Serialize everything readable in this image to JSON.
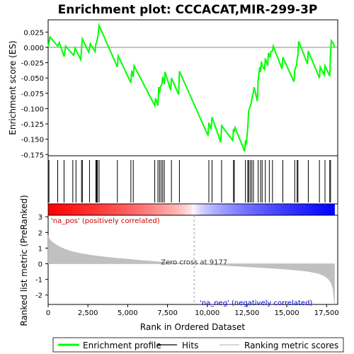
{
  "chart_data": {
    "type": "line",
    "title": "Enrichment plot: CCCACAT,MIR-299-3P",
    "es_panel": {
      "ylabel": "Enrichment score (ES)",
      "yticks": [
        "0.025",
        "0.000",
        "-0.025",
        "-0.050",
        "-0.075",
        "-0.100",
        "-0.125",
        "-0.150",
        "-0.175"
      ],
      "ylim": [
        -0.177,
        0.045
      ],
      "series_name": "Enrichment profile",
      "color": "#00ff00",
      "x": [
        0,
        120,
        600,
        700,
        1000,
        1100,
        1500,
        1600,
        1700,
        1750,
        2050,
        2100,
        2150,
        2550,
        2650,
        2950,
        3000,
        3050,
        3150,
        3200,
        4350,
        4400,
        5200,
        5250,
        5350,
        5400,
        6700,
        6750,
        6900,
        6950,
        7000,
        7050,
        7150,
        7200,
        7300,
        7350,
        7700,
        7750,
        8200,
        8250,
        10050,
        10100,
        10250,
        10300,
        10850,
        10900,
        11600,
        11650,
        11700,
        11750,
        12350,
        12400,
        12450,
        12500,
        12550,
        12600,
        12650,
        12750,
        12800,
        12900,
        12950,
        13150,
        13200,
        13300,
        13350,
        13400,
        13450,
        13600,
        13650,
        13800,
        13850,
        13950,
        14000,
        14100,
        14150,
        14700,
        14750,
        15450,
        15500,
        15600,
        15650,
        15700,
        15750,
        16300,
        16350,
        17050,
        17100,
        17350,
        17400,
        17700,
        17750,
        17800,
        17950,
        18000
      ],
      "y": [
        0.001,
        0.017,
        0.002,
        0.008,
        -0.015,
        0.002,
        -0.01,
        -0.013,
        -0.001,
        -0.004,
        -0.02,
        -0.001,
        0.014,
        -0.008,
        0.006,
        -0.007,
        0.006,
        0.008,
        0.022,
        0.036,
        -0.032,
        -0.014,
        -0.058,
        -0.038,
        -0.048,
        -0.03,
        -0.095,
        -0.083,
        -0.095,
        -0.065,
        -0.075,
        -0.065,
        -0.06,
        -0.048,
        -0.06,
        -0.04,
        -0.07,
        -0.05,
        -0.077,
        -0.039,
        -0.144,
        -0.123,
        -0.134,
        -0.114,
        -0.155,
        -0.128,
        -0.152,
        -0.133,
        -0.138,
        -0.131,
        -0.17,
        -0.152,
        -0.159,
        -0.145,
        -0.13,
        -0.104,
        -0.1,
        -0.092,
        -0.085,
        -0.073,
        -0.065,
        -0.088,
        -0.054,
        -0.032,
        -0.04,
        -0.023,
        -0.03,
        -0.036,
        -0.018,
        -0.03,
        -0.009,
        -0.016,
        -0.007,
        -0.006,
        0.002,
        -0.035,
        -0.016,
        -0.056,
        -0.037,
        -0.03,
        -0.02,
        -0.012,
        0.01,
        -0.027,
        -0.006,
        -0.05,
        -0.032,
        -0.045,
        -0.03,
        -0.047,
        -0.008,
        0.011,
        0.005,
        0.0
      ]
    },
    "hits": [
      50,
      600,
      1000,
      1550,
      1750,
      2100,
      2150,
      2600,
      3000,
      3050,
      3100,
      3200,
      4350,
      5200,
      5350,
      6700,
      6900,
      7000,
      7100,
      7200,
      7300,
      7750,
      8250,
      10100,
      10300,
      10900,
      11650,
      11700,
      12400,
      12550,
      12600,
      12700,
      12800,
      12900,
      13200,
      13350,
      13450,
      13650,
      13900,
      14100,
      14750,
      15500,
      15650,
      15700,
      16350,
      17050,
      17400,
      17700,
      17750
    ],
    "metric_panel": {
      "ylabel": "Ranked list metric (PreRanked)",
      "yticks": [
        "3",
        "2",
        "1",
        "0",
        "-1",
        "-2"
      ],
      "ylim": [
        -2.6,
        3.1
      ],
      "zero_cross_label": "Zero cross at 9177",
      "zero_cross": 9177,
      "pos_label": "'na_pos' (positively correlated)",
      "neg_label": "'na_neg' (negatively correlated)",
      "profile_x": [
        0,
        100,
        300,
        600,
        1000,
        1500,
        2000,
        3000,
        4000,
        5000,
        6000,
        7000,
        8000,
        9177,
        10000,
        11000,
        12000,
        13000,
        14000,
        15000,
        16000,
        16500,
        17000,
        17300,
        17600,
        17800,
        17900,
        18000
      ],
      "profile_y": [
        1.8,
        1.55,
        1.35,
        1.15,
        0.95,
        0.78,
        0.66,
        0.5,
        0.38,
        0.29,
        0.2,
        0.12,
        0.06,
        0.0,
        -0.05,
        -0.1,
        -0.16,
        -0.22,
        -0.28,
        -0.35,
        -0.44,
        -0.52,
        -0.62,
        -0.75,
        -0.95,
        -1.25,
        -1.6,
        -2.6
      ]
    },
    "xlabel": "Rank in Ordered Dataset",
    "xticks": [
      "0",
      "2,500",
      "5,000",
      "7,500",
      "10,000",
      "12,500",
      "15,000",
      "17,500"
    ],
    "xlim": [
      0,
      18200
    ],
    "legend": {
      "placement": "bottom",
      "items": [
        {
          "label": "Enrichment profile",
          "color": "#00ff00"
        },
        {
          "label": "Hits",
          "color": "#000000"
        },
        {
          "label": "Ranking metric scores",
          "color": "#c0c0c0"
        }
      ]
    }
  }
}
